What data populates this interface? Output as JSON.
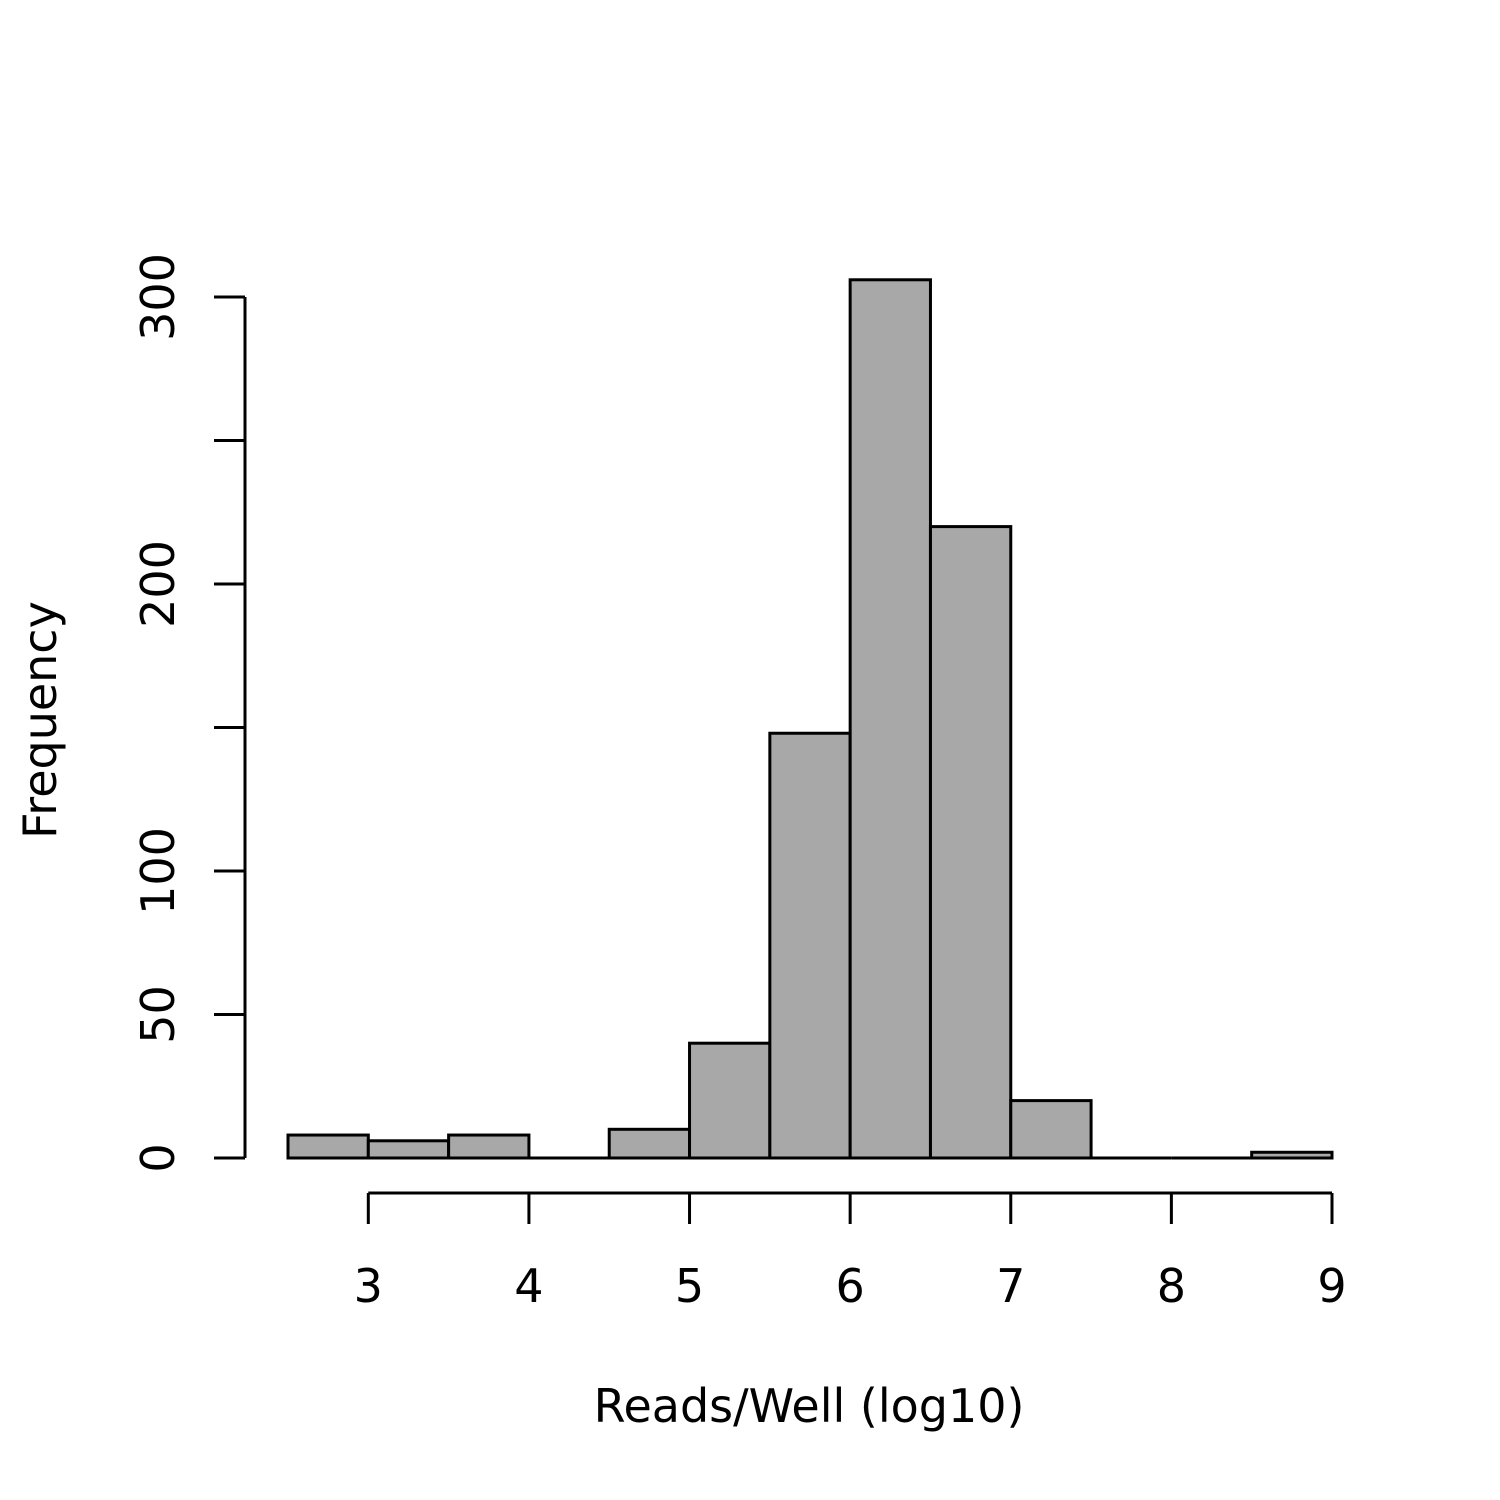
{
  "chart_data": {
    "type": "bar",
    "title": "",
    "xlabel": "Reads/Well (log10)",
    "ylabel": "Frequency",
    "bins": [
      {
        "from": 2.5,
        "to": 3.0,
        "count": 8
      },
      {
        "from": 3.0,
        "to": 3.5,
        "count": 6
      },
      {
        "from": 3.5,
        "to": 4.0,
        "count": 8
      },
      {
        "from": 4.0,
        "to": 4.5,
        "count": 0
      },
      {
        "from": 4.5,
        "to": 5.0,
        "count": 10
      },
      {
        "from": 5.0,
        "to": 5.5,
        "count": 40
      },
      {
        "from": 5.5,
        "to": 6.0,
        "count": 148
      },
      {
        "from": 6.0,
        "to": 6.5,
        "count": 306
      },
      {
        "from": 6.5,
        "to": 7.0,
        "count": 220
      },
      {
        "from": 7.0,
        "to": 7.5,
        "count": 20
      },
      {
        "from": 7.5,
        "to": 8.0,
        "count": 0
      },
      {
        "from": 8.0,
        "to": 8.5,
        "count": 0
      },
      {
        "from": 8.5,
        "to": 9.0,
        "count": 2
      }
    ],
    "xlim": [
      2.5,
      9.0
    ],
    "ylim": [
      0,
      306
    ],
    "x_ticks": [
      3,
      4,
      5,
      6,
      7,
      8,
      9
    ],
    "x_tick_labels": [
      "3",
      "4",
      "5",
      "6",
      "7",
      "8",
      "9"
    ],
    "y_ticks": [
      0,
      50,
      100,
      150,
      200,
      250,
      300
    ],
    "y_tick_labels": [
      "0",
      "50",
      "100",
      "",
      "200",
      "",
      "300"
    ],
    "bar_color": "#a8a8a8",
    "edge_color": "#000000",
    "grid": false,
    "legend": "none"
  }
}
